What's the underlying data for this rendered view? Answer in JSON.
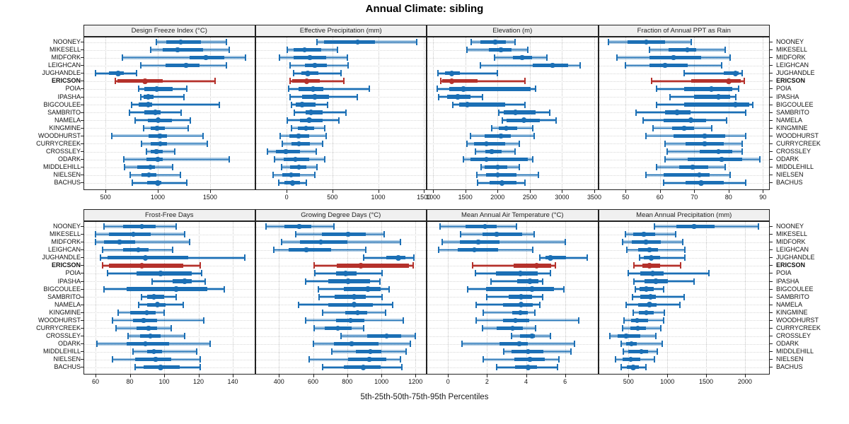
{
  "chart_data": {
    "type": "scatter",
    "subtype": "percentile-interval-dotplot",
    "title": "Annual Climate: sibling",
    "caption": "5th-25th-50th-75th-95th Percentiles",
    "percentiles": [
      5,
      25,
      50,
      75,
      95
    ],
    "legend_position": "none",
    "grid": "dotted",
    "station_labels_position": "both-sides",
    "highlight_station": "ERICSON",
    "colors": {
      "series": "#1b6fb5",
      "series_band": "rgba(27,111,181,0.38)",
      "highlight": "#b5312b",
      "highlight_band": "rgba(181,49,43,0.38)",
      "grid": "#c6c6c6",
      "strip_bg": "#f0f0f0",
      "border": "#222222"
    },
    "stations": [
      "NOONEY",
      "MIKESELL",
      "MIDFORK",
      "LEIGHCAN",
      "JUGHANDLE",
      "ERICSON",
      "POIA",
      "IPASHA",
      "BIGCOULEE",
      "SAMBRITO",
      "NAMELA",
      "KINGMINE",
      "WOODHURST",
      "CURRYCREEK",
      "CROSSLEY",
      "ODARK",
      "MIDDLEHILL",
      "NIELSEN",
      "BACHUS"
    ],
    "panels": [
      {
        "title": "Design Freeze Index (°C)",
        "row": 0,
        "col": 0,
        "xlim": [
          290,
          1930
        ],
        "ticks": [
          500,
          1000,
          1500
        ],
        "values": [
          [
            985,
            1080,
            1220,
            1410,
            1655
          ],
          [
            930,
            1050,
            1190,
            1430,
            1680
          ],
          [
            665,
            1305,
            1460,
            1635,
            1840
          ],
          [
            840,
            1075,
            1270,
            1400,
            1655
          ],
          [
            405,
            530,
            620,
            675,
            800
          ],
          [
            595,
            615,
            880,
            1045,
            1550
          ],
          [
            815,
            870,
            990,
            1140,
            1275
          ],
          [
            840,
            865,
            910,
            960,
            1250
          ],
          [
            750,
            820,
            910,
            945,
            1590
          ],
          [
            730,
            870,
            975,
            1030,
            1225
          ],
          [
            780,
            905,
            1005,
            1135,
            1310
          ],
          [
            865,
            935,
            995,
            1070,
            1290
          ],
          [
            560,
            915,
            1020,
            1090,
            1430
          ],
          [
            845,
            935,
            1025,
            1090,
            1470
          ],
          [
            890,
            935,
            985,
            1050,
            1160
          ],
          [
            675,
            890,
            1000,
            1045,
            1680
          ],
          [
            680,
            805,
            930,
            970,
            1140
          ],
          [
            735,
            845,
            915,
            990,
            1215
          ],
          [
            755,
            895,
            1000,
            1035,
            1280
          ]
        ]
      },
      {
        "title": "Effective Precipitation (mm)",
        "row": 0,
        "col": 1,
        "xlim": [
          -345,
          1530
        ],
        "ticks": [
          0,
          500,
          1000,
          1500
        ],
        "values": [
          [
            330,
            410,
            775,
            970,
            1425
          ],
          [
            10,
            75,
            195,
            380,
            555
          ],
          [
            -75,
            75,
            255,
            435,
            660
          ],
          [
            40,
            200,
            310,
            440,
            670
          ],
          [
            75,
            160,
            230,
            350,
            595
          ],
          [
            40,
            60,
            220,
            365,
            625
          ],
          [
            25,
            130,
            290,
            400,
            905
          ],
          [
            35,
            170,
            310,
            460,
            775
          ],
          [
            55,
            100,
            170,
            315,
            450
          ],
          [
            80,
            205,
            265,
            395,
            650
          ],
          [
            5,
            145,
            245,
            395,
            570
          ],
          [
            50,
            120,
            210,
            300,
            420
          ],
          [
            -70,
            30,
            130,
            245,
            430
          ],
          [
            -45,
            50,
            135,
            255,
            395
          ],
          [
            -210,
            -115,
            -10,
            150,
            320
          ],
          [
            -130,
            -30,
            95,
            245,
            415
          ],
          [
            -55,
            35,
            135,
            215,
            330
          ],
          [
            -145,
            -45,
            50,
            150,
            310
          ],
          [
            -85,
            -25,
            65,
            145,
            215
          ]
        ]
      },
      {
        "title": "Elevation (m)",
        "row": 0,
        "col": 2,
        "xlim": [
          900,
          3560
        ],
        "ticks": [
          1000,
          1500,
          2000,
          2500,
          3000,
          3500
        ],
        "values": [
          [
            1590,
            1730,
            1965,
            2130,
            2275
          ],
          [
            1520,
            1860,
            2050,
            2215,
            2465
          ],
          [
            1955,
            2240,
            2380,
            2540,
            2760
          ],
          [
            1730,
            2540,
            2850,
            3090,
            3275
          ],
          [
            1070,
            1190,
            1290,
            1415,
            2000
          ],
          [
            1120,
            1140,
            1290,
            1690,
            2425
          ],
          [
            1060,
            1245,
            1470,
            2510,
            2590
          ],
          [
            1090,
            1215,
            1380,
            1580,
            1770
          ],
          [
            1310,
            1405,
            1530,
            2120,
            2420
          ],
          [
            2020,
            2090,
            2275,
            2585,
            2805
          ],
          [
            2075,
            2135,
            2410,
            2655,
            2910
          ],
          [
            1910,
            2020,
            2135,
            2300,
            2550
          ],
          [
            1585,
            1795,
            2050,
            2205,
            2565
          ],
          [
            1520,
            1635,
            1825,
            2120,
            2335
          ],
          [
            1655,
            1805,
            1910,
            2060,
            2275
          ],
          [
            1470,
            1585,
            1825,
            2470,
            2540
          ],
          [
            1745,
            1795,
            2000,
            2150,
            2335
          ],
          [
            1680,
            1825,
            2000,
            2290,
            2630
          ],
          [
            1690,
            1875,
            2070,
            2290,
            2425
          ]
        ]
      },
      {
        "title": "Fraction of Annual PPT as Rain",
        "row": 0,
        "col": 3,
        "xlim": [
          42,
          92
        ],
        "ticks": [
          50,
          60,
          70,
          80,
          90
        ],
        "values": [
          [
            45,
            50.5,
            56,
            61.5,
            69
          ],
          [
            57,
            62.5,
            68,
            70.5,
            79
          ],
          [
            47.5,
            57,
            64,
            72,
            80.5
          ],
          [
            50,
            57,
            61.5,
            68,
            78
          ],
          [
            67,
            78.5,
            82,
            83,
            84
          ],
          [
            57.5,
            69,
            80,
            83.5,
            84.5
          ],
          [
            59,
            67,
            75,
            81,
            83
          ],
          [
            63,
            70,
            77,
            80.5,
            82
          ],
          [
            59,
            67,
            82,
            86,
            87
          ],
          [
            53,
            61.5,
            65,
            69,
            85
          ],
          [
            55,
            61,
            69,
            73.5,
            79.5
          ],
          [
            58,
            63.5,
            67,
            70,
            75
          ],
          [
            56,
            64,
            73,
            79,
            85
          ],
          [
            61.5,
            67.5,
            73,
            78.5,
            84
          ],
          [
            62,
            71.5,
            77,
            81,
            84
          ],
          [
            61.5,
            68,
            78,
            84,
            89
          ],
          [
            59,
            65.5,
            69.5,
            74,
            79
          ],
          [
            56,
            61,
            71.5,
            74.5,
            80.5
          ],
          [
            61,
            67.5,
            72,
            78.5,
            85
          ]
        ]
      },
      {
        "title": "Frost-Free Days",
        "row": 1,
        "col": 0,
        "xlim": [
          53,
          153
        ],
        "ticks": [
          60,
          80,
          100,
          120,
          140
        ],
        "values": [
          [
            65,
            76,
            87,
            95,
            107
          ],
          [
            60,
            68,
            82,
            92,
            112
          ],
          [
            60,
            65,
            74,
            83,
            115
          ],
          [
            64,
            76,
            85,
            91,
            105
          ],
          [
            63,
            67,
            89,
            114,
            147
          ],
          [
            64,
            68,
            87,
            111,
            121
          ],
          [
            67,
            84,
            98,
            116,
            122
          ],
          [
            93,
            105,
            112,
            116,
            124
          ],
          [
            65,
            78,
            107,
            125,
            135
          ],
          [
            87,
            90,
            94,
            100,
            107
          ],
          [
            85,
            90,
            96,
            101,
            111
          ],
          [
            73,
            80,
            90,
            95,
            100
          ],
          [
            70,
            82,
            88,
            96,
            123
          ],
          [
            72,
            84,
            91,
            96,
            104
          ],
          [
            79,
            86,
            92,
            98,
            112
          ],
          [
            61,
            78,
            89,
            103,
            127
          ],
          [
            82,
            90,
            94,
            99,
            119
          ],
          [
            70,
            83,
            95,
            104,
            121
          ],
          [
            83,
            88,
            98,
            109,
            121
          ]
        ]
      },
      {
        "title": "Growing Degree Days (°C)",
        "row": 1,
        "col": 1,
        "xlim": [
          260,
          1265
        ],
        "ticks": [
          400,
          600,
          800,
          1000,
          1200
        ],
        "values": [
          [
            325,
            430,
            520,
            590,
            720
          ],
          [
            500,
            650,
            805,
            910,
            1015
          ],
          [
            415,
            525,
            645,
            800,
            1110
          ],
          [
            370,
            455,
            560,
            705,
            910
          ],
          [
            895,
            1030,
            1100,
            1140,
            1190
          ],
          [
            605,
            740,
            880,
            1160,
            1185
          ],
          [
            610,
            735,
            790,
            855,
            1005
          ],
          [
            555,
            690,
            805,
            935,
            990
          ],
          [
            630,
            780,
            920,
            995,
            1045
          ],
          [
            635,
            725,
            840,
            910,
            1005
          ],
          [
            515,
            690,
            840,
            950,
            1065
          ],
          [
            655,
            790,
            860,
            915,
            1025
          ],
          [
            555,
            735,
            820,
            900,
            1130
          ],
          [
            605,
            670,
            745,
            825,
            895
          ],
          [
            765,
            915,
            1030,
            1115,
            1200
          ],
          [
            600,
            720,
            825,
            985,
            1170
          ],
          [
            710,
            850,
            935,
            1000,
            1145
          ],
          [
            575,
            805,
            930,
            1030,
            1110
          ],
          [
            655,
            780,
            895,
            995,
            1120
          ]
        ]
      },
      {
        "title": "Mean Annual Air Temperature (°C)",
        "row": 1,
        "col": 2,
        "xlim": [
          -1.1,
          7.7
        ],
        "ticks": [
          0,
          2,
          4,
          6
        ],
        "values": [
          [
            -0.4,
            0.9,
            1.9,
            2.5,
            3.5
          ],
          [
            0.65,
            1.75,
            2.5,
            3.8,
            4.4
          ],
          [
            -0.3,
            0.6,
            1.55,
            2.65,
            6.0
          ],
          [
            -0.5,
            0.5,
            1.35,
            2.55,
            4.35
          ],
          [
            4.7,
            5.0,
            5.25,
            6.05,
            7.15
          ],
          [
            1.25,
            3.35,
            4.55,
            5.3,
            5.5
          ],
          [
            1.4,
            2.45,
            3.7,
            4.6,
            5.25
          ],
          [
            2.2,
            3.55,
            4.2,
            4.65,
            4.85
          ],
          [
            1.0,
            1.95,
            4.3,
            5.45,
            5.95
          ],
          [
            2.0,
            3.1,
            3.75,
            4.3,
            4.85
          ],
          [
            1.45,
            2.8,
            3.75,
            4.35,
            4.7
          ],
          [
            1.8,
            3.3,
            3.7,
            4.1,
            4.45
          ],
          [
            1.45,
            2.8,
            3.45,
            4.15,
            6.7
          ],
          [
            1.75,
            2.5,
            3.3,
            3.85,
            4.5
          ],
          [
            3.25,
            3.7,
            4.3,
            4.45,
            5.25
          ],
          [
            0.7,
            2.65,
            3.65,
            4.1,
            6.5
          ],
          [
            2.85,
            3.25,
            4.1,
            4.9,
            6.3
          ],
          [
            1.8,
            3.4,
            4.2,
            4.95,
            5.7
          ],
          [
            2.5,
            3.45,
            4.1,
            4.55,
            5.6
          ]
        ]
      },
      {
        "title": "Mean Annual Precipitation (mm)",
        "row": 1,
        "col": 3,
        "xlim": [
          110,
          2320
        ],
        "ticks": [
          500,
          1000,
          1500,
          2000
        ],
        "values": [
          [
            830,
            1115,
            1345,
            1610,
            2170
          ],
          [
            460,
            560,
            700,
            845,
            1105
          ],
          [
            420,
            540,
            725,
            915,
            1195
          ],
          [
            480,
            620,
            770,
            875,
            1225
          ],
          [
            640,
            700,
            795,
            905,
            1225
          ],
          [
            570,
            680,
            770,
            905,
            1170
          ],
          [
            500,
            650,
            810,
            955,
            1540
          ],
          [
            570,
            710,
            855,
            1005,
            1345
          ],
          [
            590,
            640,
            730,
            825,
            955
          ],
          [
            550,
            650,
            785,
            855,
            1215
          ],
          [
            470,
            620,
            770,
            860,
            1165
          ],
          [
            560,
            635,
            730,
            830,
            965
          ],
          [
            440,
            530,
            610,
            755,
            950
          ],
          [
            420,
            520,
            620,
            725,
            920
          ],
          [
            260,
            360,
            470,
            650,
            855
          ],
          [
            410,
            470,
            540,
            605,
            935
          ],
          [
            430,
            500,
            665,
            755,
            875
          ],
          [
            330,
            420,
            530,
            650,
            830
          ],
          [
            410,
            480,
            560,
            635,
            725
          ]
        ]
      }
    ]
  }
}
